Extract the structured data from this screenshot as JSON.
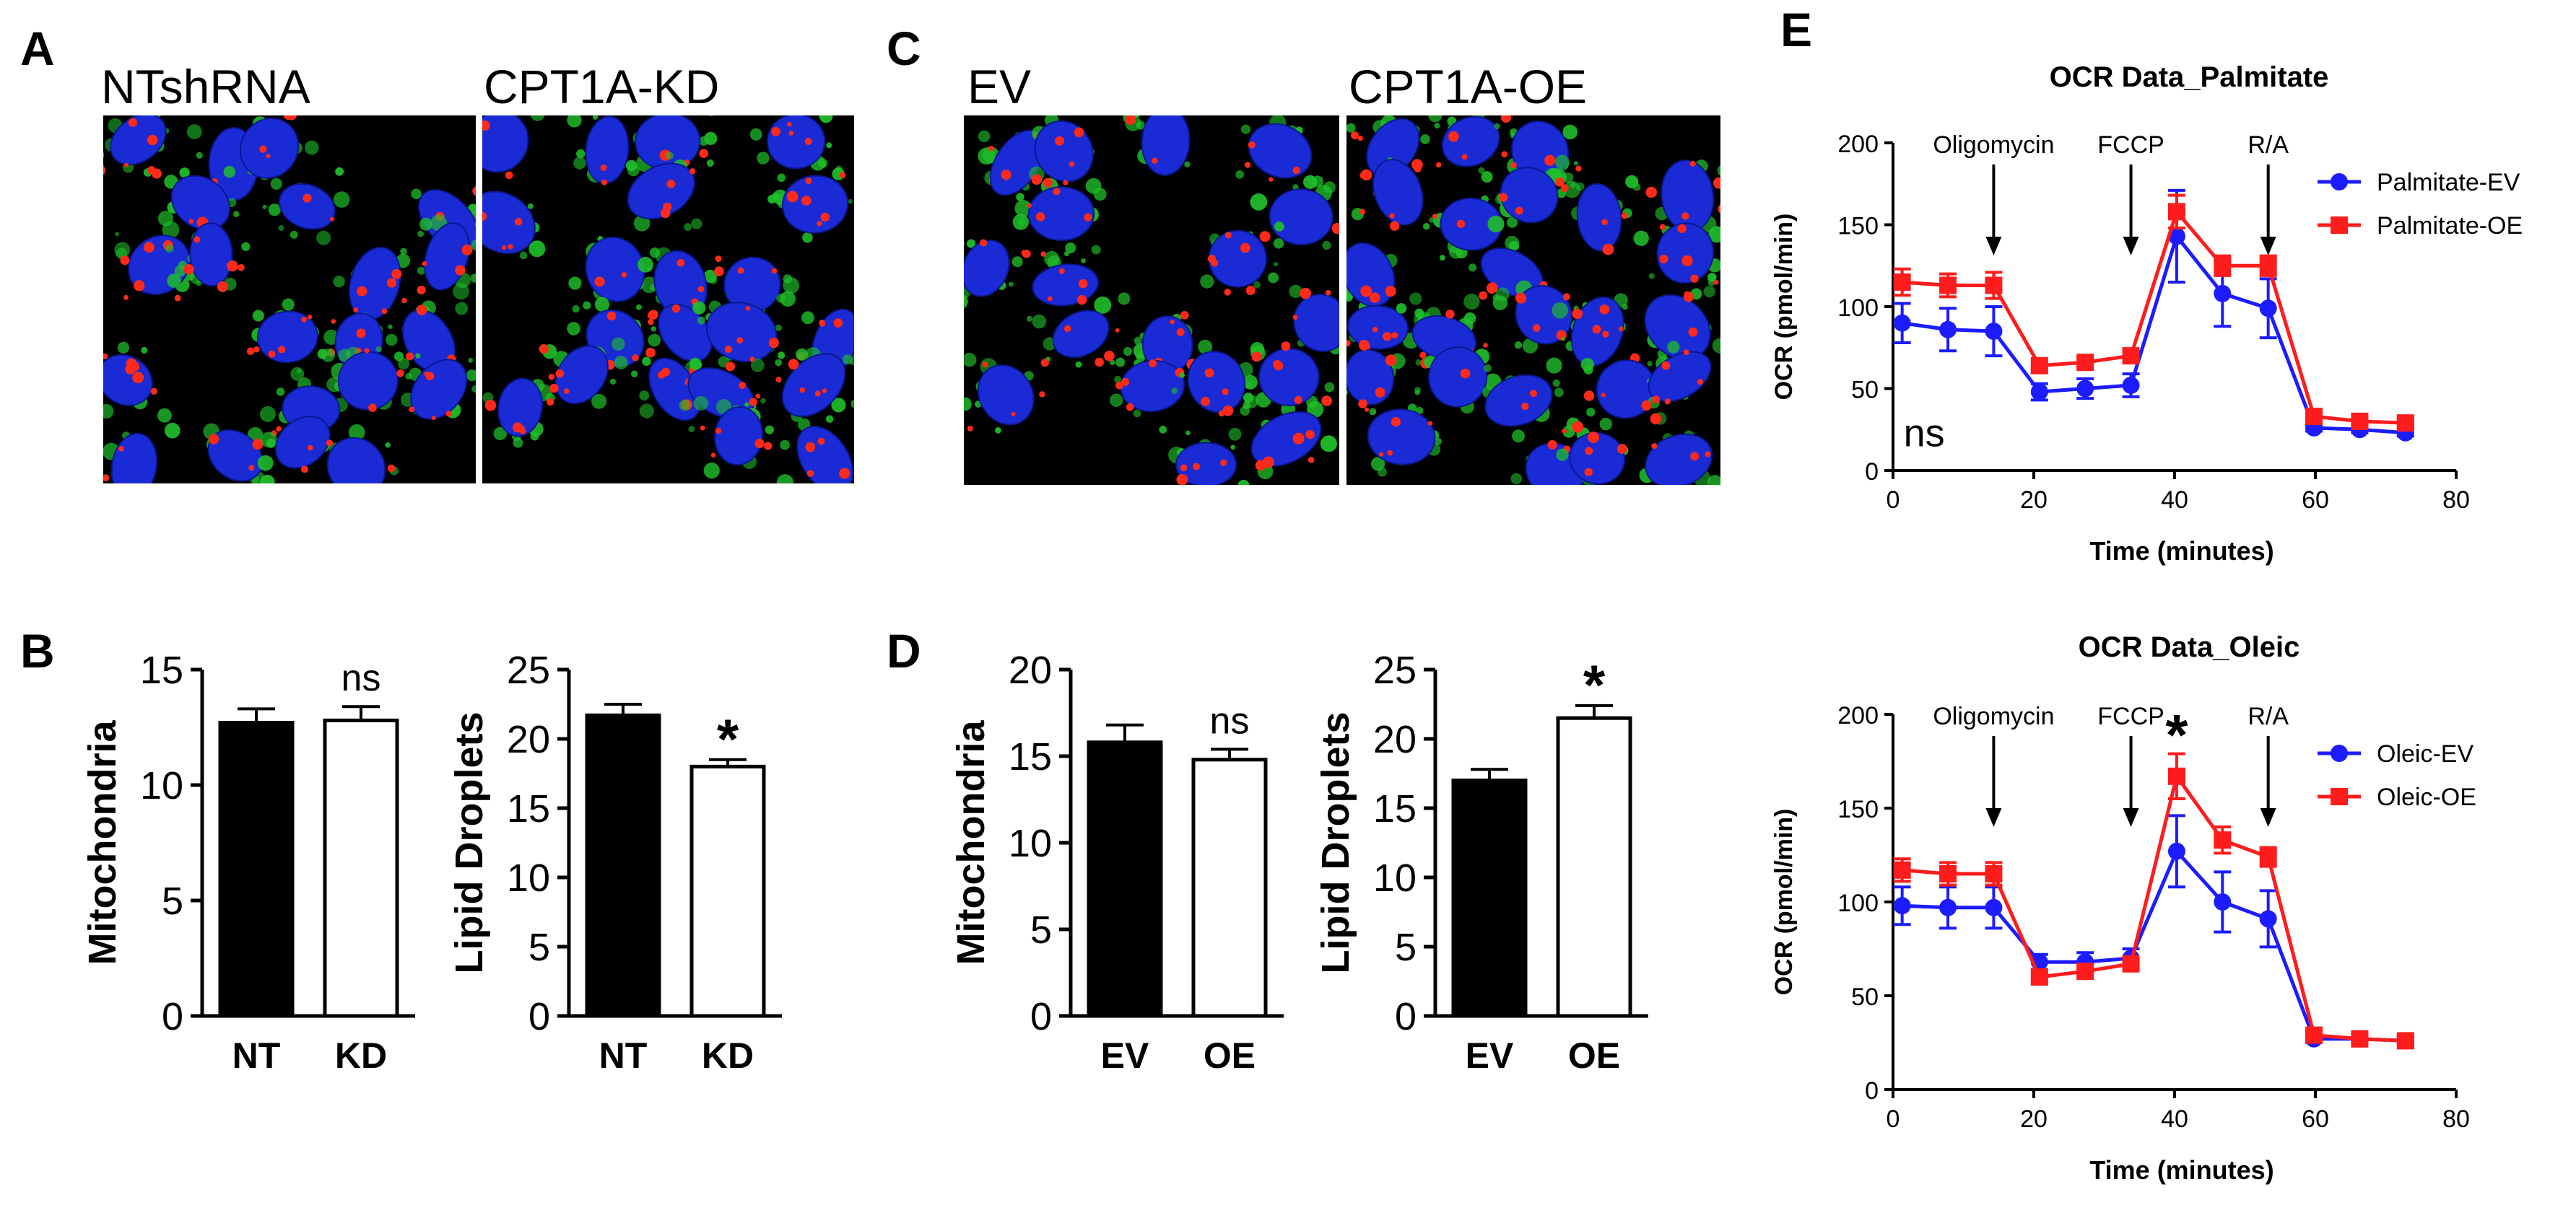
{
  "panels": {
    "A": {
      "letter": "A",
      "images": [
        {
          "label": "NTshRNA"
        },
        {
          "label": "CPT1A-KD"
        }
      ]
    },
    "B": {
      "letter": "B"
    },
    "C": {
      "letter": "C",
      "images": [
        {
          "label": "EV"
        },
        {
          "label": "CPT1A-OE"
        }
      ]
    },
    "D": {
      "letter": "D"
    },
    "E": {
      "letter": "E"
    }
  },
  "colors": {
    "bar_filled": "#000000",
    "bar_open": "#ffffff",
    "ev_series": "#1c1cff",
    "oe_series": "#ff1c1c",
    "nucleus": "#1a2bd6",
    "mito": "#1fbf2a",
    "lipid": "#ff2a1a",
    "image_bg": "#000000"
  },
  "chart_data": [
    {
      "id": "B1",
      "type": "bar",
      "ylabel": "Mitochondria",
      "categories": [
        "NT",
        "KD"
      ],
      "values": [
        12.7,
        12.8
      ],
      "errors": [
        0.6,
        0.6
      ],
      "fills": [
        "filled",
        "open"
      ],
      "ylim": [
        0,
        15
      ],
      "yticks": [
        0,
        5,
        10,
        15
      ],
      "annotations": [
        {
          "category": "KD",
          "text": "ns"
        }
      ]
    },
    {
      "id": "B2",
      "type": "bar",
      "ylabel": "Lipid Droplets",
      "categories": [
        "NT",
        "KD"
      ],
      "values": [
        21.7,
        18.0
      ],
      "errors": [
        0.8,
        0.5
      ],
      "fills": [
        "filled",
        "open"
      ],
      "ylim": [
        0,
        25
      ],
      "yticks": [
        0,
        5,
        10,
        15,
        20,
        25
      ],
      "annotations": [
        {
          "category": "KD",
          "text": "*"
        }
      ]
    },
    {
      "id": "D1",
      "type": "bar",
      "ylabel": "Mitochondria",
      "categories": [
        "EV",
        "OE"
      ],
      "values": [
        15.8,
        14.8
      ],
      "errors": [
        1.0,
        0.6
      ],
      "fills": [
        "filled",
        "open"
      ],
      "ylim": [
        0,
        20
      ],
      "yticks": [
        0,
        5,
        10,
        15,
        20
      ],
      "annotations": [
        {
          "category": "OE",
          "text": "ns"
        }
      ]
    },
    {
      "id": "D2",
      "type": "bar",
      "ylabel": "Lipid Droplets",
      "categories": [
        "EV",
        "OE"
      ],
      "values": [
        17.0,
        21.5
      ],
      "errors": [
        0.8,
        0.9
      ],
      "fills": [
        "filled",
        "open"
      ],
      "ylim": [
        0,
        25
      ],
      "yticks": [
        0,
        5,
        10,
        15,
        20,
        25
      ],
      "annotations": [
        {
          "category": "OE",
          "text": "*"
        }
      ]
    },
    {
      "id": "E1",
      "type": "line",
      "title": "OCR Data_Palmitate",
      "xlabel": "Time (minutes)",
      "ylabel": "OCR (pmol/min)",
      "xlim": [
        0,
        80
      ],
      "ylim": [
        0,
        200
      ],
      "xticks": [
        0,
        20,
        40,
        60,
        80
      ],
      "yticks": [
        0,
        50,
        100,
        150,
        200
      ],
      "legend": "top-right",
      "x": [
        1.3,
        7.8,
        14.3,
        20.8,
        27.3,
        33.8,
        40.3,
        46.8,
        53.3,
        59.8,
        66.3,
        72.8
      ],
      "series": [
        {
          "name": "Palmitate-EV",
          "color": "ev",
          "marker": "circle",
          "values": [
            90,
            86,
            85,
            48,
            50,
            52,
            143,
            108,
            99,
            26,
            25,
            23
          ],
          "errors": [
            12,
            13,
            15,
            5,
            6,
            7,
            28,
            20,
            18,
            2,
            2,
            2
          ]
        },
        {
          "name": "Palmitate-OE",
          "color": "oe",
          "marker": "square",
          "values": [
            115,
            113,
            113,
            64,
            66,
            70,
            158,
            125,
            125,
            33,
            30,
            29
          ],
          "errors": [
            8,
            7,
            8,
            2,
            3,
            4,
            10,
            6,
            6,
            2,
            2,
            2
          ]
        }
      ],
      "markers": [
        {
          "x": 14.3,
          "label": "Oligomycin"
        },
        {
          "x": 33.8,
          "label": "FCCP"
        },
        {
          "x": 53.3,
          "label": "R/A"
        }
      ],
      "annotations": [
        {
          "x": 1.5,
          "y": 20,
          "text": "ns"
        }
      ]
    },
    {
      "id": "E2",
      "type": "line",
      "title": "OCR Data_Oleic",
      "xlabel": "Time (minutes)",
      "ylabel": "OCR (pmol/min)",
      "xlim": [
        0,
        80
      ],
      "ylim": [
        0,
        200
      ],
      "xticks": [
        0,
        20,
        40,
        60,
        80
      ],
      "yticks": [
        0,
        50,
        100,
        150,
        200
      ],
      "legend": "top-right",
      "x": [
        1.3,
        7.8,
        14.3,
        20.8,
        27.3,
        33.8,
        40.3,
        46.8,
        53.3,
        59.8,
        66.3,
        72.8
      ],
      "series": [
        {
          "name": "Oleic-EV",
          "color": "ev",
          "marker": "circle",
          "values": [
            98,
            97,
            97,
            68,
            68,
            70,
            127,
            100,
            91,
            27,
            27,
            26
          ],
          "errors": [
            10,
            11,
            11,
            4,
            5,
            5,
            19,
            16,
            15,
            2,
            2,
            2
          ]
        },
        {
          "name": "Oleic-OE",
          "color": "oe",
          "marker": "square",
          "values": [
            117,
            115,
            115,
            60,
            63,
            67,
            167,
            133,
            124,
            29,
            27,
            26
          ],
          "errors": [
            6,
            6,
            6,
            2,
            2,
            2,
            12,
            7,
            5,
            2,
            2,
            2
          ]
        }
      ],
      "markers": [
        {
          "x": 14.3,
          "label": "Oligomycin"
        },
        {
          "x": 33.8,
          "label": "FCCP"
        },
        {
          "x": 53.3,
          "label": "R/A"
        }
      ],
      "annotations": [
        {
          "x": 40.3,
          "y": 190,
          "text": "*"
        }
      ]
    }
  ]
}
